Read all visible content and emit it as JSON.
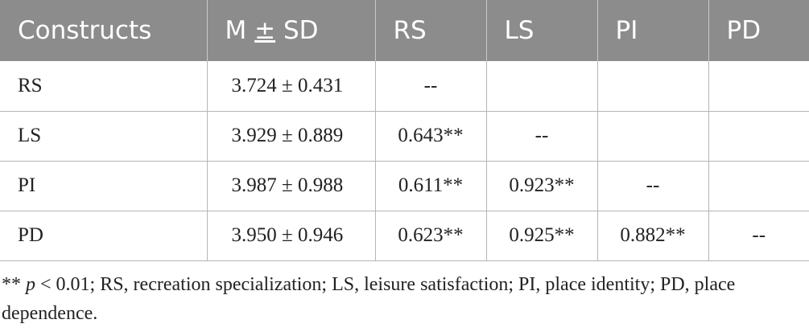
{
  "table": {
    "headers": [
      "Constructs",
      "M",
      "SD",
      "RS",
      "LS",
      "PI",
      "PD"
    ],
    "header_pm_symbol": "±",
    "rows": [
      {
        "construct": "RS",
        "msd": "3.724 ± 0.431",
        "rs": "--",
        "ls": "",
        "pi": "",
        "pd": ""
      },
      {
        "construct": "LS",
        "msd": "3.929 ± 0.889",
        "rs": "0.643**",
        "ls": "--",
        "pi": "",
        "pd": ""
      },
      {
        "construct": "PI",
        "msd": "3.987 ± 0.988",
        "rs": "0.611**",
        "ls": "0.923**",
        "pi": "--",
        "pd": ""
      },
      {
        "construct": "PD",
        "msd": "3.950 ± 0.946",
        "rs": "0.623**",
        "ls": "0.925**",
        "pi": "0.882**",
        "pd": "--"
      }
    ]
  },
  "footnote": {
    "stars": "** ",
    "p": "p",
    "rest": " < 0.01; RS, recreation specialization; LS, leisure satisfaction; PI, place identity; PD, place dependence."
  },
  "colors": {
    "header_bg": "#8c8c8c",
    "header_text": "#ffffff",
    "grid": "#b5b5b5"
  }
}
